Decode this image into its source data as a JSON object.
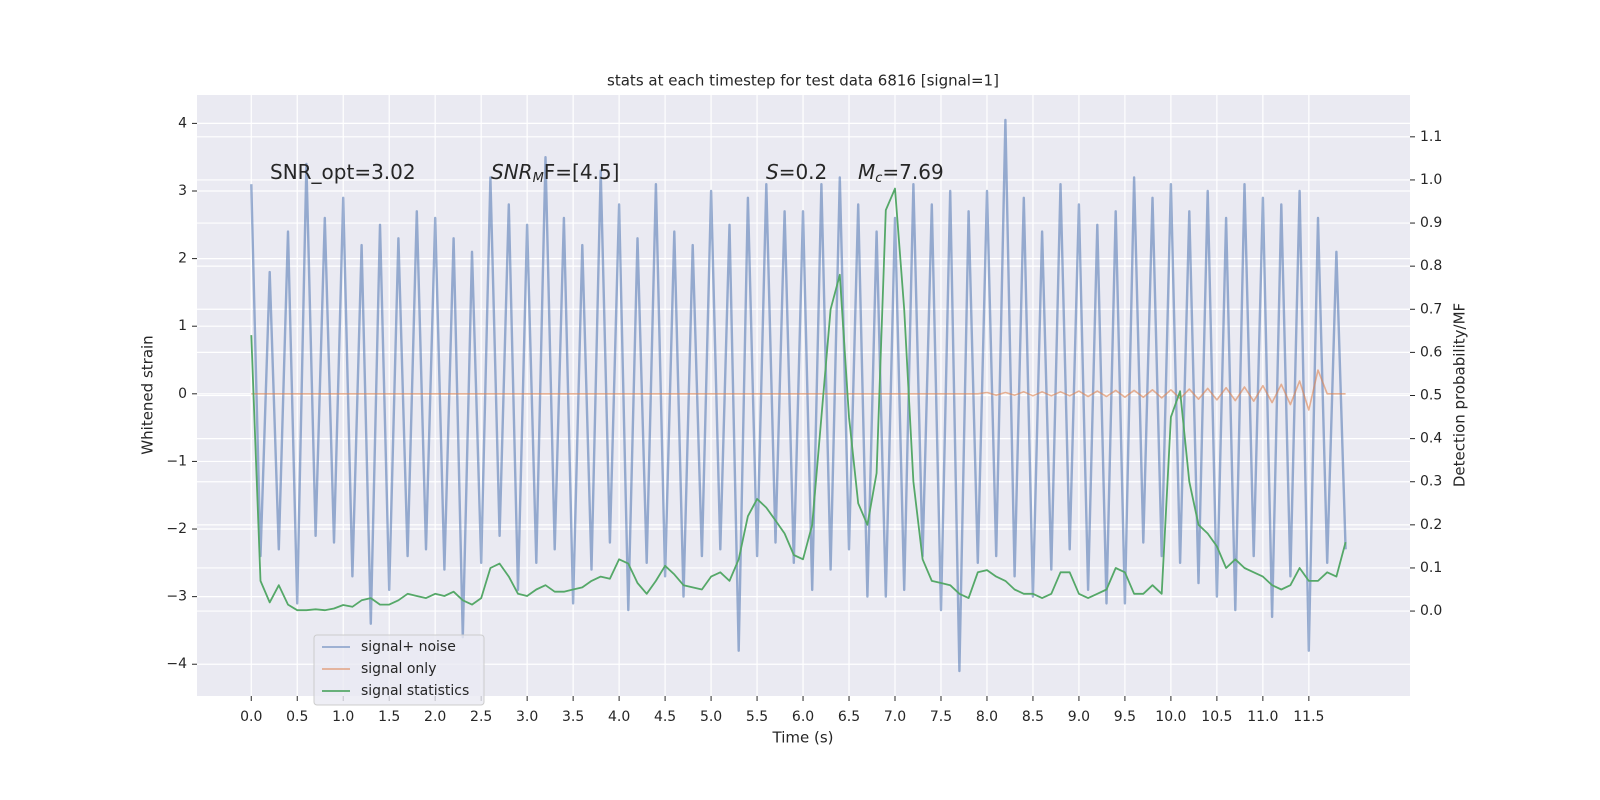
{
  "chart_data": {
    "type": "line",
    "title": "stats at each timestep for test data 6816 [signal=1]",
    "xlabel": "Time (s)",
    "ylabel": "Whitened strain",
    "y2label": "Detection probability/MF",
    "annotations": [
      {
        "parts": [
          {
            "text": "SNR_opt=3.02",
            "style": "normal"
          }
        ]
      },
      {
        "parts": [
          {
            "text": "SNR",
            "style": "italic"
          },
          {
            "text": "M",
            "style": "sub"
          },
          {
            "text": "F=[4.5]",
            "style": "normal"
          }
        ]
      },
      {
        "parts": [
          {
            "text": "S",
            "style": "italic"
          },
          {
            "text": "=0.2",
            "style": "normal"
          }
        ]
      },
      {
        "parts": [
          {
            "text": "M",
            "style": "italic"
          },
          {
            "text": "c",
            "style": "sub"
          },
          {
            "text": "=7.69",
            "style": "normal"
          }
        ]
      }
    ],
    "x": [
      0.0,
      0.1,
      0.2,
      0.3,
      0.4,
      0.5,
      0.6,
      0.7,
      0.8,
      0.9,
      1.0,
      1.1,
      1.2,
      1.3,
      1.4,
      1.5,
      1.6,
      1.7,
      1.8,
      1.9,
      2.0,
      2.1,
      2.2,
      2.3,
      2.4,
      2.5,
      2.6,
      2.7,
      2.8,
      2.9,
      3.0,
      3.1,
      3.2,
      3.3,
      3.4,
      3.5,
      3.6,
      3.7,
      3.8,
      3.9,
      4.0,
      4.1,
      4.2,
      4.3,
      4.4,
      4.5,
      4.6,
      4.7,
      4.8,
      4.9,
      5.0,
      5.1,
      5.2,
      5.3,
      5.4,
      5.5,
      5.6,
      5.7,
      5.8,
      5.9,
      6.0,
      6.1,
      6.2,
      6.3,
      6.4,
      6.5,
      6.6,
      6.7,
      6.8,
      6.9,
      7.0,
      7.1,
      7.2,
      7.3,
      7.4,
      7.5,
      7.6,
      7.7,
      7.8,
      7.9,
      8.0,
      8.1,
      8.2,
      8.3,
      8.4,
      8.5,
      8.6,
      8.7,
      8.8,
      8.9,
      9.0,
      9.1,
      9.2,
      9.3,
      9.4,
      9.5,
      9.6,
      9.7,
      9.8,
      9.9,
      10.0,
      10.1,
      10.2,
      10.3,
      10.4,
      10.5,
      10.6,
      10.7,
      10.8,
      10.9,
      11.0,
      11.1,
      11.2,
      11.3,
      11.4,
      11.5,
      11.6,
      11.7,
      11.8,
      11.9
    ],
    "series": [
      {
        "name": "signal+ noise",
        "color": "#4c72b0",
        "axis": "y",
        "values": [
          3.1,
          -2.4,
          1.8,
          -2.3,
          2.4,
          -3.1,
          3.4,
          -2.1,
          2.6,
          -2.2,
          2.9,
          -2.7,
          2.2,
          -3.4,
          2.5,
          -2.9,
          2.3,
          -2.4,
          2.7,
          -2.3,
          2.6,
          -2.6,
          2.3,
          -3.6,
          2.1,
          -2.5,
          3.2,
          -2.1,
          2.8,
          -2.9,
          2.5,
          -2.5,
          3.5,
          -2.3,
          2.6,
          -3.1,
          2.2,
          -2.6,
          3.3,
          -2.2,
          2.8,
          -3.2,
          2.3,
          -2.5,
          3.1,
          -2.7,
          2.4,
          -3.0,
          2.2,
          -2.4,
          3.0,
          -2.3,
          2.5,
          -3.8,
          2.9,
          -2.4,
          3.1,
          -2.2,
          2.7,
          -2.5,
          2.7,
          -2.9,
          3.1,
          -2.6,
          3.2,
          -2.3,
          2.8,
          -3.0,
          2.4,
          -3.0,
          2.6,
          -2.9,
          3.1,
          -2.4,
          2.8,
          -3.2,
          3.0,
          -4.1,
          2.7,
          -2.5,
          3.0,
          -2.4,
          4.05,
          -2.7,
          2.9,
          -3.0,
          2.4,
          -2.6,
          3.1,
          -2.3,
          2.8,
          -2.9,
          2.5,
          -3.1,
          2.7,
          -3.1,
          3.2,
          -2.2,
          2.9,
          -2.4,
          3.1,
          -2.5,
          2.7,
          -2.8,
          3.0,
          -3.0,
          2.6,
          -3.2,
          3.1,
          -2.4,
          2.9,
          -3.3,
          2.8,
          -2.7,
          3.0,
          -3.8,
          2.6,
          -2.5,
          2.1,
          -2.3
        ]
      },
      {
        "name": "signal only",
        "color": "#dd8452",
        "axis": "y",
        "values": [
          0,
          0,
          0,
          0,
          0,
          0,
          0,
          0,
          0,
          0,
          0,
          0,
          0,
          0,
          0,
          0,
          0,
          0,
          0,
          0,
          0,
          0,
          0,
          0,
          0,
          0,
          0,
          0,
          0,
          0,
          0,
          0,
          0,
          0,
          0,
          0,
          0,
          0,
          0,
          0,
          0,
          0,
          0,
          0,
          0,
          0,
          0,
          0,
          0,
          0,
          0,
          0,
          0,
          0,
          0,
          0,
          0,
          0,
          0,
          0,
          0,
          0,
          0,
          0,
          0,
          0,
          0,
          0,
          0,
          0,
          0,
          0,
          0,
          0,
          0,
          0,
          0,
          0,
          0,
          0,
          0.02,
          -0.02,
          0.02,
          -0.02,
          0.03,
          -0.03,
          0.03,
          -0.03,
          0.03,
          -0.03,
          0.04,
          -0.04,
          0.04,
          -0.04,
          0.05,
          -0.05,
          0.05,
          -0.05,
          0.06,
          -0.06,
          0.06,
          -0.07,
          0.07,
          -0.08,
          0.08,
          -0.09,
          0.09,
          -0.1,
          0.1,
          -0.11,
          0.12,
          -0.13,
          0.14,
          -0.16,
          0.19,
          -0.24,
          0.35,
          0,
          0,
          0
        ]
      },
      {
        "name": "signal statistics",
        "color": "#55a868",
        "axis": "y2",
        "values": [
          0.64,
          0.07,
          0.02,
          0.06,
          0.015,
          0.002,
          0.002,
          0.004,
          0.002,
          0.006,
          0.014,
          0.01,
          0.025,
          0.03,
          0.015,
          0.015,
          0.025,
          0.04,
          0.035,
          0.03,
          0.04,
          0.035,
          0.045,
          0.025,
          0.015,
          0.03,
          0.1,
          0.11,
          0.08,
          0.04,
          0.035,
          0.05,
          0.06,
          0.045,
          0.045,
          0.05,
          0.055,
          0.07,
          0.08,
          0.075,
          0.12,
          0.11,
          0.065,
          0.04,
          0.07,
          0.105,
          0.085,
          0.06,
          0.055,
          0.05,
          0.08,
          0.09,
          0.07,
          0.12,
          0.22,
          0.26,
          0.24,
          0.21,
          0.18,
          0.13,
          0.12,
          0.2,
          0.45,
          0.7,
          0.78,
          0.45,
          0.25,
          0.2,
          0.32,
          0.93,
          0.98,
          0.7,
          0.3,
          0.12,
          0.07,
          0.065,
          0.06,
          0.04,
          0.03,
          0.09,
          0.095,
          0.08,
          0.07,
          0.05,
          0.04,
          0.04,
          0.03,
          0.04,
          0.09,
          0.09,
          0.04,
          0.03,
          0.04,
          0.05,
          0.1,
          0.09,
          0.04,
          0.04,
          0.06,
          0.04,
          0.45,
          0.51,
          0.3,
          0.2,
          0.18,
          0.15,
          0.1,
          0.12,
          0.1,
          0.09,
          0.08,
          0.06,
          0.05,
          0.06,
          0.1,
          0.07,
          0.07,
          0.09,
          0.08,
          0.16
        ]
      }
    ],
    "xlim": [
      -0.59,
      12.6
    ],
    "ylim": [
      -4.47,
      4.42
    ],
    "y2lim": [
      -0.197,
      1.197
    ],
    "xticks": [
      {
        "value": 0,
        "label": "0.0"
      },
      {
        "value": 0.5,
        "label": "0.5"
      },
      {
        "value": 1,
        "label": "1.0"
      },
      {
        "value": 1.5,
        "label": "1.5"
      },
      {
        "value": 2,
        "label": "2.0"
      },
      {
        "value": 2.5,
        "label": "2.5"
      },
      {
        "value": 3,
        "label": "3.0"
      },
      {
        "value": 3.5,
        "label": "3.5"
      },
      {
        "value": 4,
        "label": "4.0"
      },
      {
        "value": 4.5,
        "label": "4.5"
      },
      {
        "value": 5,
        "label": "5.0"
      },
      {
        "value": 5.5,
        "label": "5.5"
      },
      {
        "value": 6,
        "label": "6.0"
      },
      {
        "value": 6.5,
        "label": "6.5"
      },
      {
        "value": 7,
        "label": "7.0"
      },
      {
        "value": 7.5,
        "label": "7.5"
      },
      {
        "value": 8,
        "label": "8.0"
      },
      {
        "value": 8.5,
        "label": "8.5"
      },
      {
        "value": 9,
        "label": "9.0"
      },
      {
        "value": 9.5,
        "label": "9.5"
      },
      {
        "value": 10,
        "label": "10.0"
      },
      {
        "value": 10.5,
        "label": "10.5"
      },
      {
        "value": 11,
        "label": "11.0"
      },
      {
        "value": 11.5,
        "label": "11.5"
      }
    ],
    "yticks": [
      {
        "value": -4,
        "label": "−4"
      },
      {
        "value": -3,
        "label": "−3"
      },
      {
        "value": -2,
        "label": "−2"
      },
      {
        "value": -1,
        "label": "−1"
      },
      0,
      1,
      2,
      3,
      4
    ],
    "y2ticks": [
      {
        "value": 0,
        "label": "0.0"
      },
      {
        "value": 0.1,
        "label": "0.1"
      },
      {
        "value": 0.2,
        "label": "0.2"
      },
      {
        "value": 0.3,
        "label": "0.3"
      },
      {
        "value": 0.4,
        "label": "0.4"
      },
      {
        "value": 0.5,
        "label": "0.5"
      },
      {
        "value": 0.6,
        "label": "0.6"
      },
      {
        "value": 0.7,
        "label": "0.7"
      },
      {
        "value": 0.8,
        "label": "0.8"
      },
      {
        "value": 0.9,
        "label": "0.9"
      },
      {
        "value": 1,
        "label": "1.0"
      },
      {
        "value": 1.1,
        "label": "1.1"
      }
    ],
    "grid": true,
    "legend": "lower left"
  }
}
